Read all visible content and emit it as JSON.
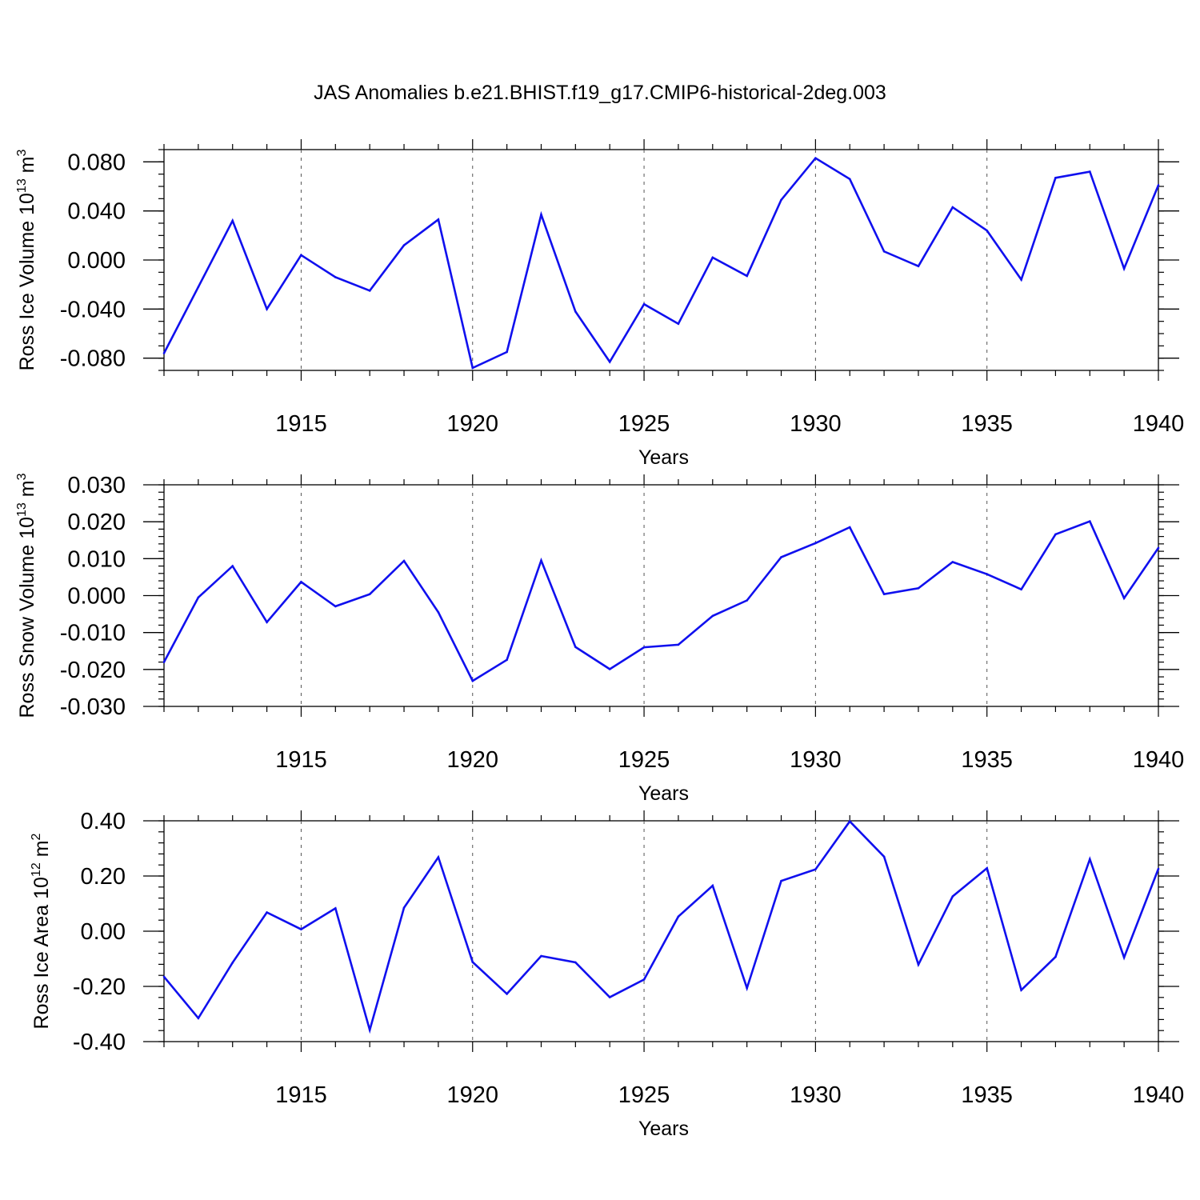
{
  "title": "JAS Anomalies b.e21.BHIST.f19_g17.CMIP6-historical-2deg.003",
  "colors": {
    "line": "#1010ee",
    "axis": "#000000",
    "grid": "#555555"
  },
  "chart_data": [
    {
      "type": "line",
      "ylabel": {
        "main": "Ross Ice Volume 10",
        "exp": "13",
        "unit": " m",
        "unit_exp": "3"
      },
      "xlabel": "Years",
      "xlim": [
        1911,
        1940
      ],
      "ylim": [
        -0.09,
        0.09
      ],
      "xticks": [
        1915,
        1920,
        1925,
        1930,
        1935,
        1940
      ],
      "yticks": [
        -0.08,
        -0.04,
        0.0,
        0.04,
        0.08
      ],
      "ytick_labels": [
        "-0.080",
        "-0.040",
        "0.000",
        "0.040",
        "0.080"
      ],
      "y_minor_step": 0.01,
      "grid": "dashed vertical at major x ticks",
      "series": [
        {
          "name": "Ross Ice Volume",
          "x": [
            1911,
            1912,
            1913,
            1914,
            1915,
            1916,
            1917,
            1918,
            1919,
            1920,
            1921,
            1922,
            1923,
            1924,
            1925,
            1926,
            1927,
            1928,
            1929,
            1930,
            1931,
            1932,
            1933,
            1934,
            1935,
            1936,
            1937,
            1938,
            1939,
            1940
          ],
          "values": [
            -0.076,
            -0.022,
            0.032,
            -0.04,
            0.004,
            -0.014,
            -0.025,
            0.012,
            0.033,
            -0.088,
            -0.075,
            0.037,
            -0.042,
            -0.083,
            -0.036,
            -0.052,
            0.002,
            -0.013,
            0.049,
            0.083,
            0.066,
            0.007,
            -0.005,
            0.043,
            0.024,
            -0.016,
            0.067,
            0.072,
            -0.007,
            0.061
          ]
        }
      ]
    },
    {
      "type": "line",
      "ylabel": {
        "main": "Ross Snow Volume 10",
        "exp": "13",
        "unit": " m",
        "unit_exp": "3"
      },
      "xlabel": "Years",
      "xlim": [
        1911,
        1940
      ],
      "ylim": [
        -0.03,
        0.03
      ],
      "xticks": [
        1915,
        1920,
        1925,
        1930,
        1935,
        1940
      ],
      "yticks": [
        -0.03,
        -0.02,
        -0.01,
        0.0,
        0.01,
        0.02,
        0.03
      ],
      "ytick_labels": [
        "-0.030",
        "-0.020",
        "-0.010",
        "0.000",
        "0.010",
        "0.020",
        "0.030"
      ],
      "y_minor_step": 0.002,
      "grid": "dashed vertical at major x ticks",
      "series": [
        {
          "name": "Ross Snow Volume",
          "x": [
            1911,
            1912,
            1913,
            1914,
            1915,
            1916,
            1917,
            1918,
            1919,
            1920,
            1921,
            1922,
            1923,
            1924,
            1925,
            1926,
            1927,
            1928,
            1929,
            1930,
            1931,
            1932,
            1933,
            1934,
            1935,
            1936,
            1937,
            1938,
            1939,
            1940
          ],
          "values": [
            -0.018,
            -0.0005,
            0.008,
            -0.0072,
            0.0037,
            -0.0029,
            0.0004,
            0.0094,
            -0.0045,
            -0.0231,
            -0.0174,
            0.0095,
            -0.0139,
            -0.0199,
            -0.014,
            -0.0133,
            -0.0055,
            -0.0013,
            0.0104,
            0.0142,
            0.0185,
            0.0004,
            0.002,
            0.0091,
            0.0058,
            0.0017,
            0.0166,
            0.0201,
            -0.0007,
            0.0129
          ]
        }
      ]
    },
    {
      "type": "line",
      "ylabel": {
        "main": "Ross Ice Area 10",
        "exp": "12",
        "unit": " m",
        "unit_exp": "2"
      },
      "xlabel": "Years",
      "xlim": [
        1911,
        1940
      ],
      "ylim": [
        -0.4,
        0.4
      ],
      "xticks": [
        1915,
        1920,
        1925,
        1930,
        1935,
        1940
      ],
      "yticks": [
        -0.4,
        -0.2,
        0.0,
        0.2,
        0.4
      ],
      "ytick_labels": [
        "-0.40",
        "-0.20",
        "0.00",
        "0.20",
        "0.40"
      ],
      "y_minor_step": 0.04,
      "grid": "dashed vertical at major x ticks",
      "series": [
        {
          "name": "Ross Ice Area",
          "x": [
            1911,
            1912,
            1913,
            1914,
            1915,
            1916,
            1917,
            1918,
            1919,
            1920,
            1921,
            1922,
            1923,
            1924,
            1925,
            1926,
            1927,
            1928,
            1929,
            1930,
            1931,
            1932,
            1933,
            1934,
            1935,
            1936,
            1937,
            1938,
            1939,
            1940
          ],
          "values": [
            -0.165,
            -0.315,
            -0.114,
            0.068,
            0.007,
            0.083,
            -0.358,
            0.085,
            0.268,
            -0.112,
            -0.227,
            -0.09,
            -0.113,
            -0.239,
            -0.175,
            0.053,
            0.165,
            -0.206,
            0.182,
            0.224,
            0.398,
            0.27,
            -0.121,
            0.126,
            0.228,
            -0.213,
            -0.093,
            0.261,
            -0.095,
            0.226
          ]
        }
      ]
    }
  ]
}
